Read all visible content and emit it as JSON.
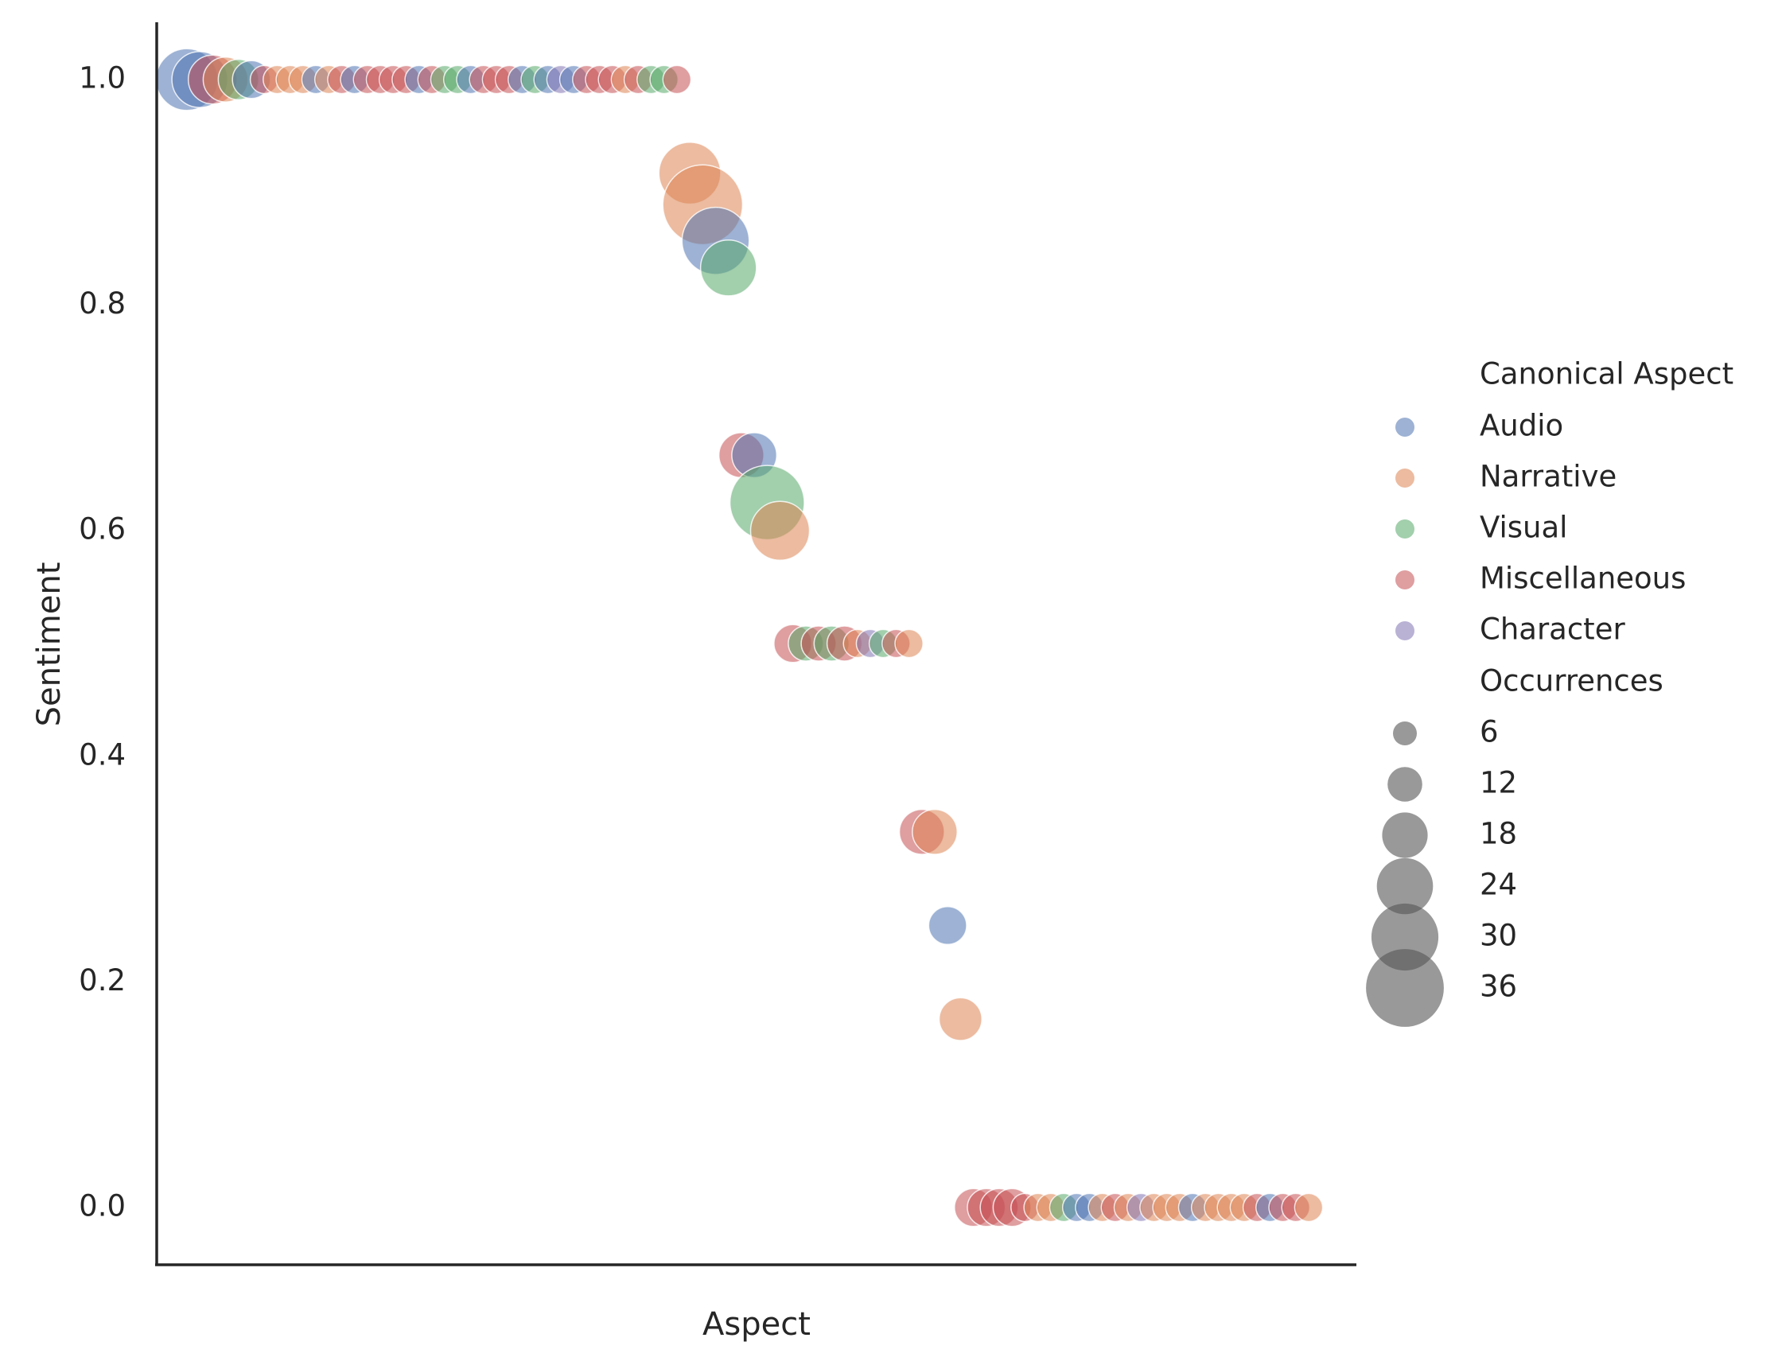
{
  "chart_data": {
    "type": "scatter",
    "title": "",
    "xlabel": "Aspect",
    "ylabel": "Sentiment",
    "ylim": [
      -0.05,
      1.05
    ],
    "yticks": [
      "0.0",
      "0.2",
      "0.4",
      "0.6",
      "0.8",
      "1.0"
    ],
    "ytick_values": [
      0.0,
      0.2,
      0.4,
      0.6,
      0.8,
      1.0
    ],
    "x_tick_labels_shown": false,
    "grid": false,
    "legend_placement": "right",
    "hue_title": "Canonical Aspect",
    "size_title": "Occurrences",
    "size_legend_values": [
      6,
      12,
      18,
      24,
      30,
      36
    ],
    "alpha": 0.55,
    "colors": {
      "Audio": "#4c72b0",
      "Narrative": "#dd8452",
      "Visual": "#55a868",
      "Miscellaneous": "#c44e52",
      "Character": "#8172b3"
    },
    "hue_order": [
      "Audio",
      "Narrative",
      "Visual",
      "Miscellaneous",
      "Character"
    ],
    "points": [
      {
        "x": 0,
        "y": 1.0,
        "aspect": "Audio",
        "size": 18
      },
      {
        "x": 1,
        "y": 1.0,
        "aspect": "Audio",
        "size": 14
      },
      {
        "x": 2,
        "y": 1.0,
        "aspect": "Miscellaneous",
        "size": 10
      },
      {
        "x": 3,
        "y": 1.0,
        "aspect": "Narrative",
        "size": 8
      },
      {
        "x": 4,
        "y": 1.0,
        "aspect": "Visual",
        "size": 6
      },
      {
        "x": 5,
        "y": 1.0,
        "aspect": "Audio",
        "size": 5
      },
      {
        "x": 6,
        "y": 1.0,
        "aspect": "Miscellaneous",
        "size": 2
      },
      {
        "x": 7,
        "y": 1.0,
        "aspect": "Narrative",
        "size": 2
      },
      {
        "x": 8,
        "y": 1.0,
        "aspect": "Narrative",
        "size": 2
      },
      {
        "x": 9,
        "y": 1.0,
        "aspect": "Narrative",
        "size": 2
      },
      {
        "x": 10,
        "y": 1.0,
        "aspect": "Audio",
        "size": 2
      },
      {
        "x": 11,
        "y": 1.0,
        "aspect": "Narrative",
        "size": 2
      },
      {
        "x": 12,
        "y": 1.0,
        "aspect": "Miscellaneous",
        "size": 2
      },
      {
        "x": 13,
        "y": 1.0,
        "aspect": "Audio",
        "size": 2
      },
      {
        "x": 14,
        "y": 1.0,
        "aspect": "Miscellaneous",
        "size": 2
      },
      {
        "x": 15,
        "y": 1.0,
        "aspect": "Miscellaneous",
        "size": 2
      },
      {
        "x": 16,
        "y": 1.0,
        "aspect": "Miscellaneous",
        "size": 2
      },
      {
        "x": 17,
        "y": 1.0,
        "aspect": "Miscellaneous",
        "size": 2
      },
      {
        "x": 18,
        "y": 1.0,
        "aspect": "Audio",
        "size": 2
      },
      {
        "x": 19,
        "y": 1.0,
        "aspect": "Miscellaneous",
        "size": 2
      },
      {
        "x": 20,
        "y": 1.0,
        "aspect": "Visual",
        "size": 2
      },
      {
        "x": 21,
        "y": 1.0,
        "aspect": "Visual",
        "size": 2
      },
      {
        "x": 22,
        "y": 1.0,
        "aspect": "Audio",
        "size": 2
      },
      {
        "x": 23,
        "y": 1.0,
        "aspect": "Miscellaneous",
        "size": 2
      },
      {
        "x": 24,
        "y": 1.0,
        "aspect": "Miscellaneous",
        "size": 2
      },
      {
        "x": 25,
        "y": 1.0,
        "aspect": "Miscellaneous",
        "size": 2
      },
      {
        "x": 26,
        "y": 1.0,
        "aspect": "Audio",
        "size": 2
      },
      {
        "x": 27,
        "y": 1.0,
        "aspect": "Visual",
        "size": 2
      },
      {
        "x": 28,
        "y": 1.0,
        "aspect": "Audio",
        "size": 2
      },
      {
        "x": 29,
        "y": 1.0,
        "aspect": "Character",
        "size": 2
      },
      {
        "x": 30,
        "y": 1.0,
        "aspect": "Audio",
        "size": 2
      },
      {
        "x": 31,
        "y": 1.0,
        "aspect": "Miscellaneous",
        "size": 2
      },
      {
        "x": 32,
        "y": 1.0,
        "aspect": "Miscellaneous",
        "size": 2
      },
      {
        "x": 33,
        "y": 1.0,
        "aspect": "Miscellaneous",
        "size": 2
      },
      {
        "x": 34,
        "y": 1.0,
        "aspect": "Narrative",
        "size": 2
      },
      {
        "x": 35,
        "y": 1.0,
        "aspect": "Miscellaneous",
        "size": 2
      },
      {
        "x": 36,
        "y": 1.0,
        "aspect": "Visual",
        "size": 2
      },
      {
        "x": 37,
        "y": 1.0,
        "aspect": "Visual",
        "size": 2
      },
      {
        "x": 38,
        "y": 1.0,
        "aspect": "Miscellaneous",
        "size": 2
      },
      {
        "x": 39,
        "y": 0.917,
        "aspect": "Narrative",
        "size": 18
      },
      {
        "x": 40,
        "y": 0.889,
        "aspect": "Narrative",
        "size": 33
      },
      {
        "x": 41,
        "y": 0.857,
        "aspect": "Audio",
        "size": 22
      },
      {
        "x": 42,
        "y": 0.833,
        "aspect": "Visual",
        "size": 14
      },
      {
        "x": 43,
        "y": 0.667,
        "aspect": "Miscellaneous",
        "size": 8
      },
      {
        "x": 44,
        "y": 0.667,
        "aspect": "Audio",
        "size": 8
      },
      {
        "x": 45,
        "y": 0.625,
        "aspect": "Visual",
        "size": 28
      },
      {
        "x": 46,
        "y": 0.6,
        "aspect": "Narrative",
        "size": 16
      },
      {
        "x": 47,
        "y": 0.5,
        "aspect": "Miscellaneous",
        "size": 5
      },
      {
        "x": 48,
        "y": 0.5,
        "aspect": "Visual",
        "size": 4
      },
      {
        "x": 49,
        "y": 0.5,
        "aspect": "Miscellaneous",
        "size": 4
      },
      {
        "x": 50,
        "y": 0.5,
        "aspect": "Visual",
        "size": 4
      },
      {
        "x": 51,
        "y": 0.5,
        "aspect": "Miscellaneous",
        "size": 4
      },
      {
        "x": 52,
        "y": 0.5,
        "aspect": "Narrative",
        "size": 2
      },
      {
        "x": 53,
        "y": 0.5,
        "aspect": "Character",
        "size": 2
      },
      {
        "x": 54,
        "y": 0.5,
        "aspect": "Visual",
        "size": 2
      },
      {
        "x": 55,
        "y": 0.5,
        "aspect": "Miscellaneous",
        "size": 2
      },
      {
        "x": 56,
        "y": 0.5,
        "aspect": "Narrative",
        "size": 2
      },
      {
        "x": 57,
        "y": 0.333,
        "aspect": "Miscellaneous",
        "size": 8
      },
      {
        "x": 58,
        "y": 0.333,
        "aspect": "Narrative",
        "size": 8
      },
      {
        "x": 59,
        "y": 0.25,
        "aspect": "Audio",
        "size": 5
      },
      {
        "x": 60,
        "y": 0.167,
        "aspect": "Narrative",
        "size": 7
      },
      {
        "x": 61,
        "y": 0.0,
        "aspect": "Miscellaneous",
        "size": 5
      },
      {
        "x": 62,
        "y": 0.0,
        "aspect": "Miscellaneous",
        "size": 5
      },
      {
        "x": 63,
        "y": 0.0,
        "aspect": "Miscellaneous",
        "size": 5
      },
      {
        "x": 64,
        "y": 0.0,
        "aspect": "Miscellaneous",
        "size": 5
      },
      {
        "x": 65,
        "y": 0.0,
        "aspect": "Miscellaneous",
        "size": 2
      },
      {
        "x": 66,
        "y": 0.0,
        "aspect": "Narrative",
        "size": 2
      },
      {
        "x": 67,
        "y": 0.0,
        "aspect": "Narrative",
        "size": 2
      },
      {
        "x": 68,
        "y": 0.0,
        "aspect": "Visual",
        "size": 2
      },
      {
        "x": 69,
        "y": 0.0,
        "aspect": "Audio",
        "size": 2
      },
      {
        "x": 70,
        "y": 0.0,
        "aspect": "Audio",
        "size": 2
      },
      {
        "x": 71,
        "y": 0.0,
        "aspect": "Narrative",
        "size": 2
      },
      {
        "x": 72,
        "y": 0.0,
        "aspect": "Miscellaneous",
        "size": 2
      },
      {
        "x": 73,
        "y": 0.0,
        "aspect": "Narrative",
        "size": 2
      },
      {
        "x": 74,
        "y": 0.0,
        "aspect": "Character",
        "size": 2
      },
      {
        "x": 75,
        "y": 0.0,
        "aspect": "Narrative",
        "size": 2
      },
      {
        "x": 76,
        "y": 0.0,
        "aspect": "Narrative",
        "size": 2
      },
      {
        "x": 77,
        "y": 0.0,
        "aspect": "Narrative",
        "size": 2
      },
      {
        "x": 78,
        "y": 0.0,
        "aspect": "Audio",
        "size": 2
      },
      {
        "x": 79,
        "y": 0.0,
        "aspect": "Narrative",
        "size": 2
      },
      {
        "x": 80,
        "y": 0.0,
        "aspect": "Narrative",
        "size": 2
      },
      {
        "x": 81,
        "y": 0.0,
        "aspect": "Narrative",
        "size": 2
      },
      {
        "x": 82,
        "y": 0.0,
        "aspect": "Narrative",
        "size": 2
      },
      {
        "x": 83,
        "y": 0.0,
        "aspect": "Miscellaneous",
        "size": 2
      },
      {
        "x": 84,
        "y": 0.0,
        "aspect": "Audio",
        "size": 2
      },
      {
        "x": 85,
        "y": 0.0,
        "aspect": "Miscellaneous",
        "size": 2
      },
      {
        "x": 86,
        "y": 0.0,
        "aspect": "Miscellaneous",
        "size": 2
      },
      {
        "x": 87,
        "y": 0.0,
        "aspect": "Narrative",
        "size": 2
      }
    ]
  }
}
